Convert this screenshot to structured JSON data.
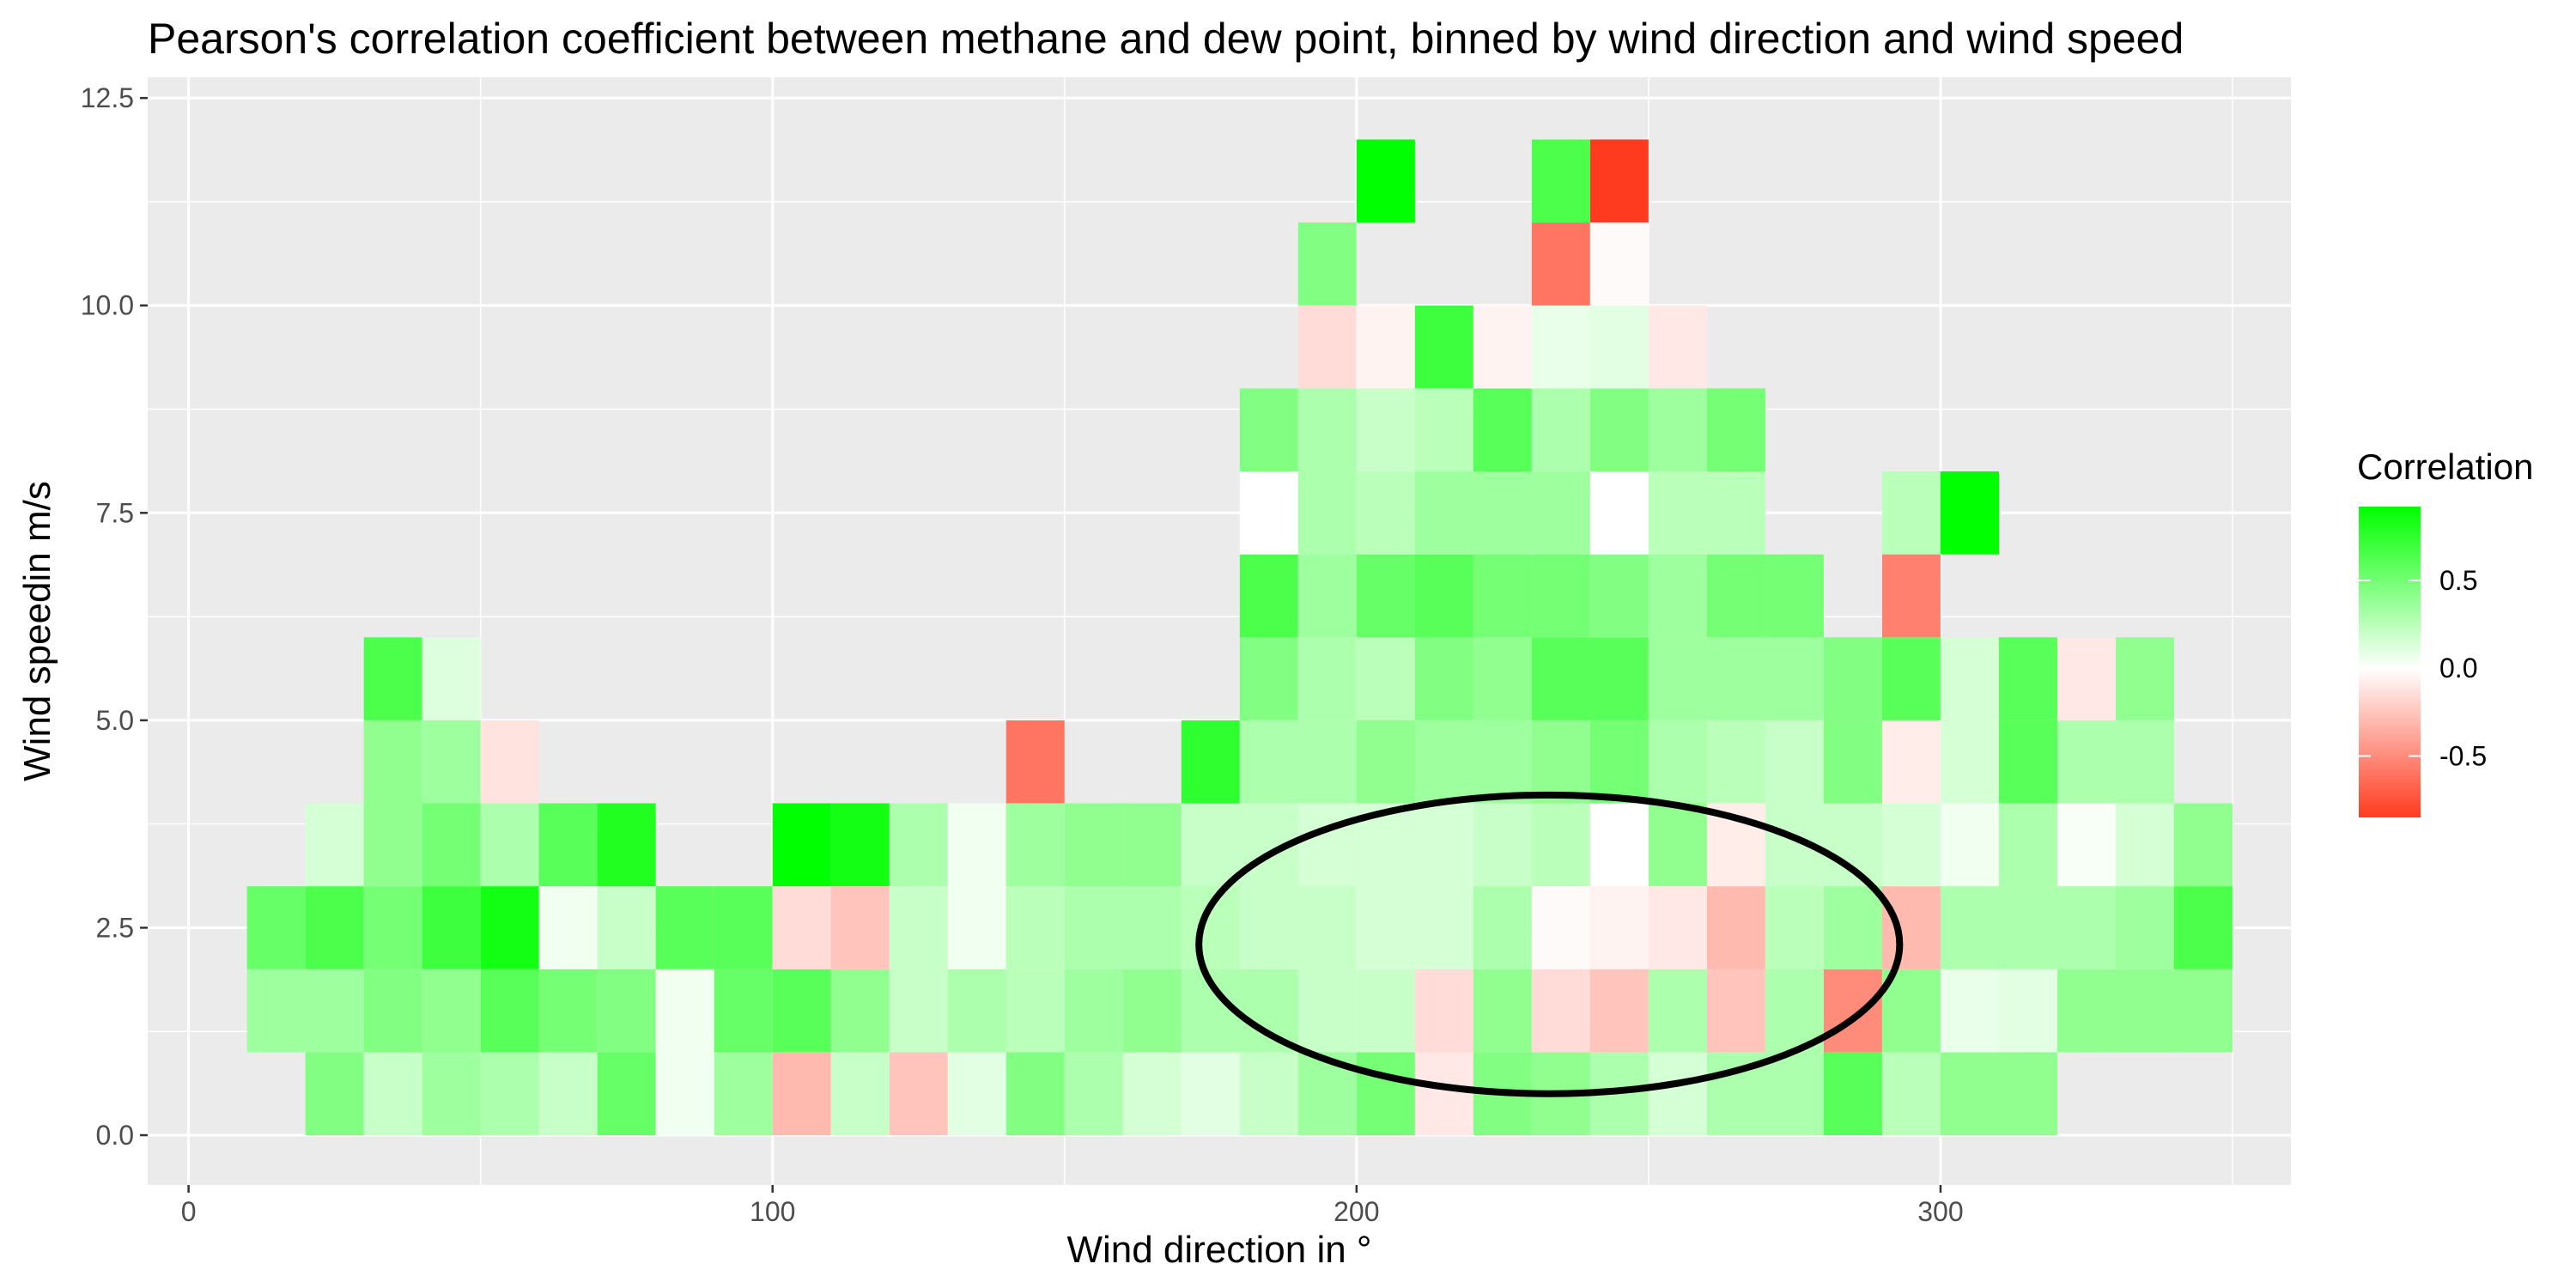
{
  "chart_data": {
    "type": "heatmap",
    "title": "Pearson's correlation coefficient between methane and dew point, binned by wind direction and wind speed",
    "xlabel": "Wind direction in °",
    "ylabel": "Wind speedin m/s",
    "x_ticks": [
      0,
      100,
      200,
      300
    ],
    "y_ticks": [
      "0.0",
      "2.5",
      "5.0",
      "7.5",
      "10.0",
      "12.5"
    ],
    "xlim": [
      -7,
      360
    ],
    "ylim": [
      -0.6,
      12.75
    ],
    "x_bin_width": 10,
    "y_bin_height": 1,
    "grid": true,
    "legend_position": "right",
    "legend": {
      "title": "Correlation",
      "breaks": [
        0.5,
        0.0,
        -0.5
      ],
      "labels": [
        "0.5",
        "0.0",
        "-0.5"
      ],
      "min": -0.85,
      "max": 0.92
    },
    "colors": {
      "low": "#ff3b1f",
      "mid": "#ffffff",
      "high": "#00ff00",
      "panel": "#ebebeb",
      "grid": "#ffffff"
    },
    "cells": [
      {
        "x": 15,
        "y": 1.5,
        "value": 0.35
      },
      {
        "x": 15,
        "y": 2.5,
        "value": 0.55
      },
      {
        "x": 25,
        "y": 0.5,
        "value": 0.45
      },
      {
        "x": 25,
        "y": 1.5,
        "value": 0.35
      },
      {
        "x": 25,
        "y": 2.5,
        "value": 0.65
      },
      {
        "x": 25,
        "y": 3.5,
        "value": 0.15
      },
      {
        "x": 35,
        "y": 0.5,
        "value": 0.2
      },
      {
        "x": 35,
        "y": 1.5,
        "value": 0.45
      },
      {
        "x": 35,
        "y": 2.5,
        "value": 0.5
      },
      {
        "x": 35,
        "y": 3.5,
        "value": 0.4
      },
      {
        "x": 35,
        "y": 4.5,
        "value": 0.4
      },
      {
        "x": 35,
        "y": 5.5,
        "value": 0.65
      },
      {
        "x": 45,
        "y": 0.5,
        "value": 0.35
      },
      {
        "x": 45,
        "y": 1.5,
        "value": 0.4
      },
      {
        "x": 45,
        "y": 2.5,
        "value": 0.7
      },
      {
        "x": 45,
        "y": 3.5,
        "value": 0.5
      },
      {
        "x": 45,
        "y": 4.5,
        "value": 0.35
      },
      {
        "x": 45,
        "y": 5.5,
        "value": 0.12
      },
      {
        "x": 55,
        "y": 0.5,
        "value": 0.3
      },
      {
        "x": 55,
        "y": 1.5,
        "value": 0.6
      },
      {
        "x": 55,
        "y": 2.5,
        "value": 0.85
      },
      {
        "x": 55,
        "y": 3.5,
        "value": 0.3
      },
      {
        "x": 55,
        "y": 4.5,
        "value": -0.12
      },
      {
        "x": 65,
        "y": 0.5,
        "value": 0.2
      },
      {
        "x": 65,
        "y": 1.5,
        "value": 0.5
      },
      {
        "x": 65,
        "y": 2.5,
        "value": 0.05
      },
      {
        "x": 65,
        "y": 3.5,
        "value": 0.6
      },
      {
        "x": 75,
        "y": 0.5,
        "value": 0.55
      },
      {
        "x": 75,
        "y": 1.5,
        "value": 0.45
      },
      {
        "x": 75,
        "y": 2.5,
        "value": 0.2
      },
      {
        "x": 75,
        "y": 3.5,
        "value": 0.8
      },
      {
        "x": 85,
        "y": 0.5,
        "value": 0.05
      },
      {
        "x": 85,
        "y": 1.5,
        "value": 0.05
      },
      {
        "x": 85,
        "y": 2.5,
        "value": 0.6
      },
      {
        "x": 95,
        "y": 0.5,
        "value": 0.35
      },
      {
        "x": 95,
        "y": 1.5,
        "value": 0.55
      },
      {
        "x": 95,
        "y": 2.5,
        "value": 0.6
      },
      {
        "x": 105,
        "y": 0.5,
        "value": -0.3
      },
      {
        "x": 105,
        "y": 1.5,
        "value": 0.6
      },
      {
        "x": 105,
        "y": 2.5,
        "value": -0.15
      },
      {
        "x": 105,
        "y": 3.5,
        "value": 0.92
      },
      {
        "x": 115,
        "y": 0.5,
        "value": 0.2
      },
      {
        "x": 115,
        "y": 1.5,
        "value": 0.4
      },
      {
        "x": 115,
        "y": 2.5,
        "value": -0.25
      },
      {
        "x": 115,
        "y": 3.5,
        "value": 0.85
      },
      {
        "x": 125,
        "y": 0.5,
        "value": -0.25
      },
      {
        "x": 125,
        "y": 1.5,
        "value": 0.2
      },
      {
        "x": 125,
        "y": 2.5,
        "value": 0.2
      },
      {
        "x": 125,
        "y": 3.5,
        "value": 0.3
      },
      {
        "x": 135,
        "y": 0.5,
        "value": 0.1
      },
      {
        "x": 135,
        "y": 1.5,
        "value": 0.3
      },
      {
        "x": 135,
        "y": 2.5,
        "value": 0.05
      },
      {
        "x": 135,
        "y": 3.5,
        "value": 0.05
      },
      {
        "x": 145,
        "y": 0.5,
        "value": 0.45
      },
      {
        "x": 145,
        "y": 1.5,
        "value": 0.25
      },
      {
        "x": 145,
        "y": 2.5,
        "value": 0.25
      },
      {
        "x": 145,
        "y": 3.5,
        "value": 0.35
      },
      {
        "x": 145,
        "y": 4.5,
        "value": -0.6
      },
      {
        "x": 155,
        "y": 0.5,
        "value": 0.3
      },
      {
        "x": 155,
        "y": 1.5,
        "value": 0.35
      },
      {
        "x": 155,
        "y": 2.5,
        "value": 0.3
      },
      {
        "x": 155,
        "y": 3.5,
        "value": 0.4
      },
      {
        "x": 165,
        "y": 0.5,
        "value": 0.15
      },
      {
        "x": 165,
        "y": 1.5,
        "value": 0.4
      },
      {
        "x": 165,
        "y": 2.5,
        "value": 0.3
      },
      {
        "x": 165,
        "y": 3.5,
        "value": 0.4
      },
      {
        "x": 175,
        "y": 0.5,
        "value": 0.1
      },
      {
        "x": 175,
        "y": 1.5,
        "value": 0.3
      },
      {
        "x": 175,
        "y": 2.5,
        "value": 0.25
      },
      {
        "x": 175,
        "y": 3.5,
        "value": 0.2
      },
      {
        "x": 175,
        "y": 4.5,
        "value": 0.75
      },
      {
        "x": 185,
        "y": 0.5,
        "value": 0.2
      },
      {
        "x": 185,
        "y": 1.5,
        "value": 0.3
      },
      {
        "x": 185,
        "y": 2.5,
        "value": 0.2
      },
      {
        "x": 185,
        "y": 3.5,
        "value": 0.2
      },
      {
        "x": 185,
        "y": 4.5,
        "value": 0.3
      },
      {
        "x": 185,
        "y": 5.5,
        "value": 0.45
      },
      {
        "x": 185,
        "y": 6.5,
        "value": 0.65
      },
      {
        "x": 185,
        "y": 7.5,
        "value": 0.0
      },
      {
        "x": 185,
        "y": 8.5,
        "value": 0.45
      },
      {
        "x": 195,
        "y": 0.5,
        "value": 0.35
      },
      {
        "x": 195,
        "y": 1.5,
        "value": 0.2
      },
      {
        "x": 195,
        "y": 2.5,
        "value": 0.2
      },
      {
        "x": 195,
        "y": 3.5,
        "value": 0.15
      },
      {
        "x": 195,
        "y": 4.5,
        "value": 0.3
      },
      {
        "x": 195,
        "y": 5.5,
        "value": 0.3
      },
      {
        "x": 195,
        "y": 6.5,
        "value": 0.35
      },
      {
        "x": 195,
        "y": 7.5,
        "value": 0.3
      },
      {
        "x": 195,
        "y": 8.5,
        "value": 0.3
      },
      {
        "x": 195,
        "y": 9.5,
        "value": -0.15
      },
      {
        "x": 195,
        "y": 10.5,
        "value": 0.45
      },
      {
        "x": 205,
        "y": 0.5,
        "value": 0.5
      },
      {
        "x": 205,
        "y": 1.5,
        "value": 0.2
      },
      {
        "x": 205,
        "y": 2.5,
        "value": 0.15
      },
      {
        "x": 205,
        "y": 3.5,
        "value": 0.15
      },
      {
        "x": 205,
        "y": 4.5,
        "value": 0.4
      },
      {
        "x": 205,
        "y": 5.5,
        "value": 0.25
      },
      {
        "x": 205,
        "y": 6.5,
        "value": 0.55
      },
      {
        "x": 205,
        "y": 7.5,
        "value": 0.25
      },
      {
        "x": 205,
        "y": 8.5,
        "value": 0.2
      },
      {
        "x": 205,
        "y": 9.5,
        "value": -0.05
      },
      {
        "x": 205,
        "y": 11.5,
        "value": 0.92
      },
      {
        "x": 215,
        "y": 0.5,
        "value": -0.1
      },
      {
        "x": 215,
        "y": 1.5,
        "value": -0.15
      },
      {
        "x": 215,
        "y": 2.5,
        "value": 0.15
      },
      {
        "x": 215,
        "y": 3.5,
        "value": 0.15
      },
      {
        "x": 215,
        "y": 4.5,
        "value": 0.35
      },
      {
        "x": 215,
        "y": 5.5,
        "value": 0.45
      },
      {
        "x": 215,
        "y": 6.5,
        "value": 0.6
      },
      {
        "x": 215,
        "y": 7.5,
        "value": 0.35
      },
      {
        "x": 215,
        "y": 8.5,
        "value": 0.25
      },
      {
        "x": 215,
        "y": 9.5,
        "value": 0.7
      },
      {
        "x": 225,
        "y": 0.5,
        "value": 0.45
      },
      {
        "x": 225,
        "y": 1.5,
        "value": 0.4
      },
      {
        "x": 225,
        "y": 2.5,
        "value": 0.3
      },
      {
        "x": 225,
        "y": 3.5,
        "value": 0.2
      },
      {
        "x": 225,
        "y": 4.5,
        "value": 0.35
      },
      {
        "x": 225,
        "y": 5.5,
        "value": 0.4
      },
      {
        "x": 225,
        "y": 6.5,
        "value": 0.5
      },
      {
        "x": 225,
        "y": 7.5,
        "value": 0.35
      },
      {
        "x": 225,
        "y": 8.5,
        "value": 0.6
      },
      {
        "x": 225,
        "y": 9.5,
        "value": -0.05
      },
      {
        "x": 235,
        "y": 0.5,
        "value": 0.4
      },
      {
        "x": 235,
        "y": 1.5,
        "value": -0.15
      },
      {
        "x": 235,
        "y": 2.5,
        "value": -0.02
      },
      {
        "x": 235,
        "y": 3.5,
        "value": 0.25
      },
      {
        "x": 235,
        "y": 4.5,
        "value": 0.4
      },
      {
        "x": 235,
        "y": 5.5,
        "value": 0.6
      },
      {
        "x": 235,
        "y": 6.5,
        "value": 0.5
      },
      {
        "x": 235,
        "y": 7.5,
        "value": 0.35
      },
      {
        "x": 235,
        "y": 8.5,
        "value": 0.3
      },
      {
        "x": 235,
        "y": 9.5,
        "value": 0.08
      },
      {
        "x": 235,
        "y": 10.5,
        "value": -0.6
      },
      {
        "x": 235,
        "y": 11.5,
        "value": 0.65
      },
      {
        "x": 245,
        "y": 0.5,
        "value": 0.3
      },
      {
        "x": 245,
        "y": 1.5,
        "value": -0.25
      },
      {
        "x": 245,
        "y": 2.5,
        "value": -0.05
      },
      {
        "x": 245,
        "y": 3.5,
        "value": 0.0
      },
      {
        "x": 245,
        "y": 4.5,
        "value": 0.5
      },
      {
        "x": 245,
        "y": 5.5,
        "value": 0.6
      },
      {
        "x": 245,
        "y": 6.5,
        "value": 0.45
      },
      {
        "x": 245,
        "y": 7.5,
        "value": 0.0
      },
      {
        "x": 245,
        "y": 8.5,
        "value": 0.45
      },
      {
        "x": 245,
        "y": 9.5,
        "value": 0.1
      },
      {
        "x": 245,
        "y": 10.5,
        "value": -0.02
      },
      {
        "x": 245,
        "y": 11.5,
        "value": -0.85
      },
      {
        "x": 255,
        "y": 0.5,
        "value": 0.15
      },
      {
        "x": 255,
        "y": 1.5,
        "value": 0.3
      },
      {
        "x": 255,
        "y": 2.5,
        "value": -0.1
      },
      {
        "x": 255,
        "y": 3.5,
        "value": 0.4
      },
      {
        "x": 255,
        "y": 4.5,
        "value": 0.3
      },
      {
        "x": 255,
        "y": 5.5,
        "value": 0.35
      },
      {
        "x": 255,
        "y": 6.5,
        "value": 0.35
      },
      {
        "x": 255,
        "y": 7.5,
        "value": 0.25
      },
      {
        "x": 255,
        "y": 8.5,
        "value": 0.35
      },
      {
        "x": 255,
        "y": 9.5,
        "value": -0.1
      },
      {
        "x": 265,
        "y": 0.5,
        "value": 0.3
      },
      {
        "x": 265,
        "y": 1.5,
        "value": -0.25
      },
      {
        "x": 265,
        "y": 2.5,
        "value": -0.3
      },
      {
        "x": 265,
        "y": 3.5,
        "value": -0.08
      },
      {
        "x": 265,
        "y": 4.5,
        "value": 0.25
      },
      {
        "x": 265,
        "y": 5.5,
        "value": 0.35
      },
      {
        "x": 265,
        "y": 6.5,
        "value": 0.5
      },
      {
        "x": 265,
        "y": 7.5,
        "value": 0.25
      },
      {
        "x": 265,
        "y": 8.5,
        "value": 0.5
      },
      {
        "x": 275,
        "y": 0.5,
        "value": 0.3
      },
      {
        "x": 275,
        "y": 1.5,
        "value": 0.3
      },
      {
        "x": 275,
        "y": 2.5,
        "value": 0.25
      },
      {
        "x": 275,
        "y": 3.5,
        "value": 0.2
      },
      {
        "x": 275,
        "y": 4.5,
        "value": 0.2
      },
      {
        "x": 275,
        "y": 5.5,
        "value": 0.35
      },
      {
        "x": 275,
        "y": 6.5,
        "value": 0.5
      },
      {
        "x": 285,
        "y": 0.5,
        "value": 0.6
      },
      {
        "x": 285,
        "y": 1.5,
        "value": -0.5
      },
      {
        "x": 285,
        "y": 2.5,
        "value": 0.35
      },
      {
        "x": 285,
        "y": 3.5,
        "value": 0.2
      },
      {
        "x": 285,
        "y": 4.5,
        "value": 0.45
      },
      {
        "x": 285,
        "y": 5.5,
        "value": 0.45
      },
      {
        "x": 295,
        "y": 0.5,
        "value": 0.25
      },
      {
        "x": 295,
        "y": 1.5,
        "value": 0.4
      },
      {
        "x": 295,
        "y": 2.5,
        "value": -0.3
      },
      {
        "x": 295,
        "y": 3.5,
        "value": 0.15
      },
      {
        "x": 295,
        "y": 4.5,
        "value": -0.08
      },
      {
        "x": 295,
        "y": 5.5,
        "value": 0.6
      },
      {
        "x": 295,
        "y": 6.5,
        "value": -0.55
      },
      {
        "x": 295,
        "y": 7.5,
        "value": 0.25
      },
      {
        "x": 305,
        "y": 0.5,
        "value": 0.4
      },
      {
        "x": 305,
        "y": 1.5,
        "value": 0.08
      },
      {
        "x": 305,
        "y": 2.5,
        "value": 0.3
      },
      {
        "x": 305,
        "y": 3.5,
        "value": 0.05
      },
      {
        "x": 305,
        "y": 4.5,
        "value": 0.15
      },
      {
        "x": 305,
        "y": 5.5,
        "value": 0.15
      },
      {
        "x": 305,
        "y": 7.5,
        "value": 0.92
      },
      {
        "x": 315,
        "y": 0.5,
        "value": 0.4
      },
      {
        "x": 315,
        "y": 1.5,
        "value": 0.1
      },
      {
        "x": 315,
        "y": 2.5,
        "value": 0.3
      },
      {
        "x": 315,
        "y": 3.5,
        "value": 0.3
      },
      {
        "x": 315,
        "y": 4.5,
        "value": 0.6
      },
      {
        "x": 315,
        "y": 5.5,
        "value": 0.6
      },
      {
        "x": 325,
        "y": 1.5,
        "value": 0.4
      },
      {
        "x": 325,
        "y": 2.5,
        "value": 0.3
      },
      {
        "x": 325,
        "y": 3.5,
        "value": 0.03
      },
      {
        "x": 325,
        "y": 4.5,
        "value": 0.3
      },
      {
        "x": 325,
        "y": 5.5,
        "value": -0.1
      },
      {
        "x": 335,
        "y": 1.5,
        "value": 0.4
      },
      {
        "x": 335,
        "y": 2.5,
        "value": 0.35
      },
      {
        "x": 335,
        "y": 3.5,
        "value": 0.15
      },
      {
        "x": 335,
        "y": 4.5,
        "value": 0.3
      },
      {
        "x": 335,
        "y": 5.5,
        "value": 0.4
      },
      {
        "x": 345,
        "y": 1.5,
        "value": 0.4
      },
      {
        "x": 345,
        "y": 2.5,
        "value": 0.65
      },
      {
        "x": 345,
        "y": 3.5,
        "value": 0.4
      }
    ],
    "annotations": [
      {
        "type": "ellipse",
        "center_x": 233,
        "center_y": 2.3,
        "radius_x": 60,
        "radius_y": 1.8,
        "stroke": "#000000"
      }
    ]
  }
}
